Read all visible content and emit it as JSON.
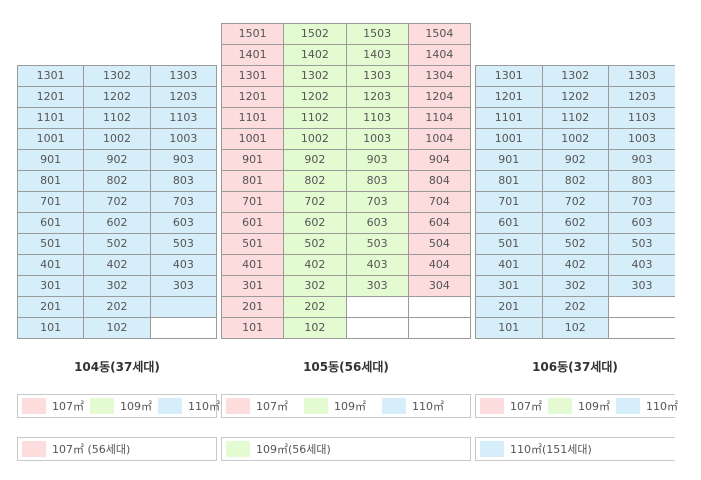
{
  "colors": {
    "107": "#fcdcdc",
    "109": "#e4fbd2",
    "110": "#d6eefa",
    "empty": "#ffffff"
  },
  "buildings": [
    {
      "name": "104동(37세대)",
      "rows": [
        [
          {
            "t": "1301",
            "c": "110"
          },
          {
            "t": "1302",
            "c": "110"
          },
          {
            "t": "1303",
            "c": "110"
          }
        ],
        [
          {
            "t": "1201",
            "c": "110"
          },
          {
            "t": "1202",
            "c": "110"
          },
          {
            "t": "1203",
            "c": "110"
          }
        ],
        [
          {
            "t": "1101",
            "c": "110"
          },
          {
            "t": "1102",
            "c": "110"
          },
          {
            "t": "1103",
            "c": "110"
          }
        ],
        [
          {
            "t": "1001",
            "c": "110"
          },
          {
            "t": "1002",
            "c": "110"
          },
          {
            "t": "1003",
            "c": "110"
          }
        ],
        [
          {
            "t": "901",
            "c": "110"
          },
          {
            "t": "902",
            "c": "110"
          },
          {
            "t": "903",
            "c": "110"
          }
        ],
        [
          {
            "t": "801",
            "c": "110"
          },
          {
            "t": "802",
            "c": "110"
          },
          {
            "t": "803",
            "c": "110"
          }
        ],
        [
          {
            "t": "701",
            "c": "110"
          },
          {
            "t": "702",
            "c": "110"
          },
          {
            "t": "703",
            "c": "110"
          }
        ],
        [
          {
            "t": "601",
            "c": "110"
          },
          {
            "t": "602",
            "c": "110"
          },
          {
            "t": "603",
            "c": "110"
          }
        ],
        [
          {
            "t": "501",
            "c": "110"
          },
          {
            "t": "502",
            "c": "110"
          },
          {
            "t": "503",
            "c": "110"
          }
        ],
        [
          {
            "t": "401",
            "c": "110"
          },
          {
            "t": "402",
            "c": "110"
          },
          {
            "t": "403",
            "c": "110"
          }
        ],
        [
          {
            "t": "301",
            "c": "110"
          },
          {
            "t": "302",
            "c": "110"
          },
          {
            "t": "303",
            "c": "110"
          }
        ],
        [
          {
            "t": "201",
            "c": "110"
          },
          {
            "t": "202",
            "c": "110"
          },
          {
            "t": "",
            "c": "110"
          }
        ],
        [
          {
            "t": "101",
            "c": "110"
          },
          {
            "t": "102",
            "c": "110"
          },
          {
            "t": "",
            "c": "empty"
          }
        ]
      ]
    },
    {
      "name": "105동(56세대)",
      "rows": [
        [
          {
            "t": "1501",
            "c": "107"
          },
          {
            "t": "1502",
            "c": "109"
          },
          {
            "t": "1503",
            "c": "109"
          },
          {
            "t": "1504",
            "c": "107"
          }
        ],
        [
          {
            "t": "1401",
            "c": "107"
          },
          {
            "t": "1402",
            "c": "109"
          },
          {
            "t": "1403",
            "c": "109"
          },
          {
            "t": "1404",
            "c": "107"
          }
        ],
        [
          {
            "t": "1301",
            "c": "107"
          },
          {
            "t": "1302",
            "c": "109"
          },
          {
            "t": "1303",
            "c": "109"
          },
          {
            "t": "1304",
            "c": "107"
          }
        ],
        [
          {
            "t": "1201",
            "c": "107"
          },
          {
            "t": "1202",
            "c": "109"
          },
          {
            "t": "1203",
            "c": "109"
          },
          {
            "t": "1204",
            "c": "107"
          }
        ],
        [
          {
            "t": "1101",
            "c": "107"
          },
          {
            "t": "1102",
            "c": "109"
          },
          {
            "t": "1103",
            "c": "109"
          },
          {
            "t": "1104",
            "c": "107"
          }
        ],
        [
          {
            "t": "1001",
            "c": "107"
          },
          {
            "t": "1002",
            "c": "109"
          },
          {
            "t": "1003",
            "c": "109"
          },
          {
            "t": "1004",
            "c": "107"
          }
        ],
        [
          {
            "t": "901",
            "c": "107"
          },
          {
            "t": "902",
            "c": "109"
          },
          {
            "t": "903",
            "c": "109"
          },
          {
            "t": "904",
            "c": "107"
          }
        ],
        [
          {
            "t": "801",
            "c": "107"
          },
          {
            "t": "802",
            "c": "109"
          },
          {
            "t": "803",
            "c": "109"
          },
          {
            "t": "804",
            "c": "107"
          }
        ],
        [
          {
            "t": "701",
            "c": "107"
          },
          {
            "t": "702",
            "c": "109"
          },
          {
            "t": "703",
            "c": "109"
          },
          {
            "t": "704",
            "c": "107"
          }
        ],
        [
          {
            "t": "601",
            "c": "107"
          },
          {
            "t": "602",
            "c": "109"
          },
          {
            "t": "603",
            "c": "109"
          },
          {
            "t": "604",
            "c": "107"
          }
        ],
        [
          {
            "t": "501",
            "c": "107"
          },
          {
            "t": "502",
            "c": "109"
          },
          {
            "t": "503",
            "c": "109"
          },
          {
            "t": "504",
            "c": "107"
          }
        ],
        [
          {
            "t": "401",
            "c": "107"
          },
          {
            "t": "402",
            "c": "109"
          },
          {
            "t": "403",
            "c": "109"
          },
          {
            "t": "404",
            "c": "107"
          }
        ],
        [
          {
            "t": "301",
            "c": "107"
          },
          {
            "t": "302",
            "c": "109"
          },
          {
            "t": "303",
            "c": "109"
          },
          {
            "t": "304",
            "c": "107"
          }
        ],
        [
          {
            "t": "201",
            "c": "107"
          },
          {
            "t": "202",
            "c": "109"
          },
          {
            "t": "",
            "c": "empty"
          },
          {
            "t": "",
            "c": "empty"
          }
        ],
        [
          {
            "t": "101",
            "c": "107"
          },
          {
            "t": "102",
            "c": "109"
          },
          {
            "t": "",
            "c": "empty"
          },
          {
            "t": "",
            "c": "empty"
          }
        ]
      ]
    },
    {
      "name": "106동(37세대)",
      "rows": [
        [
          {
            "t": "1301",
            "c": "110"
          },
          {
            "t": "1302",
            "c": "110"
          },
          {
            "t": "1303",
            "c": "110"
          }
        ],
        [
          {
            "t": "1201",
            "c": "110"
          },
          {
            "t": "1202",
            "c": "110"
          },
          {
            "t": "1203",
            "c": "110"
          }
        ],
        [
          {
            "t": "1101",
            "c": "110"
          },
          {
            "t": "1102",
            "c": "110"
          },
          {
            "t": "1103",
            "c": "110"
          }
        ],
        [
          {
            "t": "1001",
            "c": "110"
          },
          {
            "t": "1002",
            "c": "110"
          },
          {
            "t": "1003",
            "c": "110"
          }
        ],
        [
          {
            "t": "901",
            "c": "110"
          },
          {
            "t": "902",
            "c": "110"
          },
          {
            "t": "903",
            "c": "110"
          }
        ],
        [
          {
            "t": "801",
            "c": "110"
          },
          {
            "t": "802",
            "c": "110"
          },
          {
            "t": "803",
            "c": "110"
          }
        ],
        [
          {
            "t": "701",
            "c": "110"
          },
          {
            "t": "702",
            "c": "110"
          },
          {
            "t": "703",
            "c": "110"
          }
        ],
        [
          {
            "t": "601",
            "c": "110"
          },
          {
            "t": "602",
            "c": "110"
          },
          {
            "t": "603",
            "c": "110"
          }
        ],
        [
          {
            "t": "501",
            "c": "110"
          },
          {
            "t": "502",
            "c": "110"
          },
          {
            "t": "503",
            "c": "110"
          }
        ],
        [
          {
            "t": "401",
            "c": "110"
          },
          {
            "t": "402",
            "c": "110"
          },
          {
            "t": "403",
            "c": "110"
          }
        ],
        [
          {
            "t": "301",
            "c": "110"
          },
          {
            "t": "302",
            "c": "110"
          },
          {
            "t": "303",
            "c": "110"
          }
        ],
        [
          {
            "t": "201",
            "c": "110"
          },
          {
            "t": "202",
            "c": "110"
          },
          {
            "t": "",
            "c": "empty"
          }
        ],
        [
          {
            "t": "101",
            "c": "110"
          },
          {
            "t": "102",
            "c": "110"
          },
          {
            "t": "",
            "c": "empty"
          }
        ]
      ]
    }
  ],
  "legend_labels": {
    "107": "107㎡",
    "109": "109㎡",
    "110": "110㎡"
  },
  "summary_labels": {
    "107": "107㎡ (56세대)",
    "109": "109㎡(56세대)",
    "110": "110㎡(151세대)"
  }
}
